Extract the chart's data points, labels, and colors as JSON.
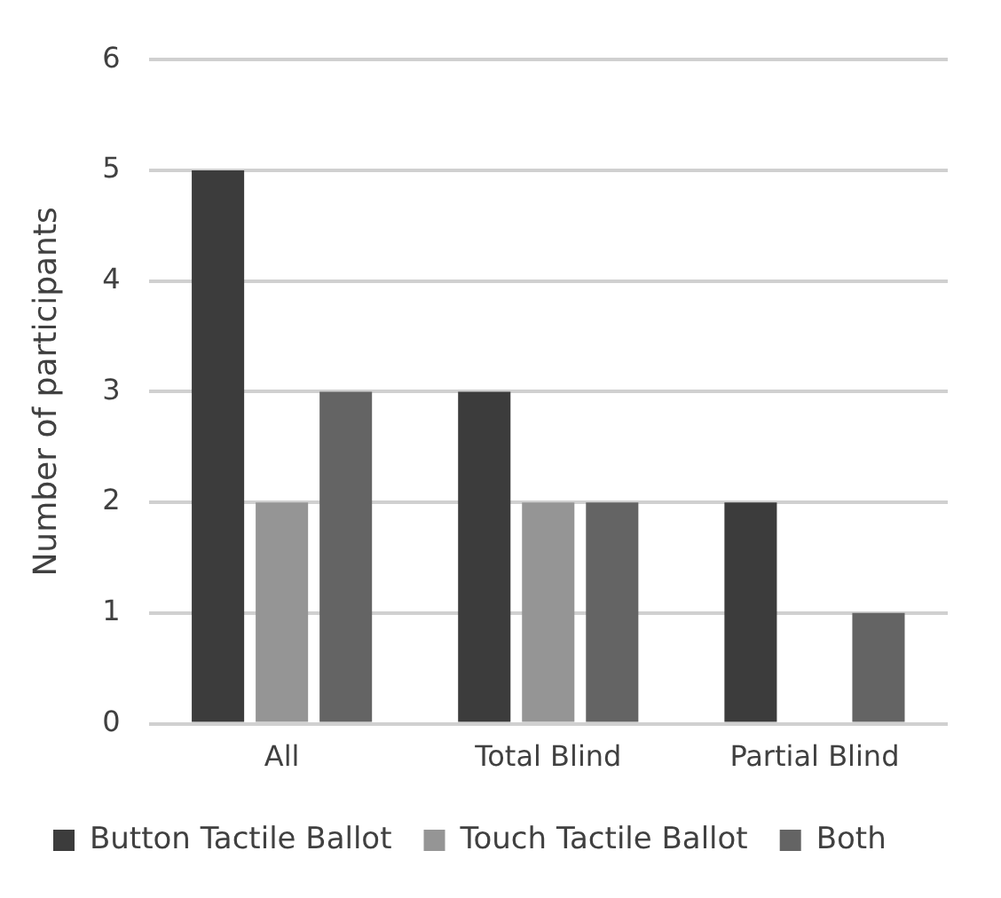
{
  "chart_data": {
    "type": "bar",
    "ylabel": "Number of participants",
    "categories": [
      "All",
      "Total Blind",
      "Partial Blind"
    ],
    "series": [
      {
        "name": "Button Tactile Ballot",
        "color": "#3c3c3c",
        "values": [
          5,
          3,
          2
        ]
      },
      {
        "name": "Touch Tactile Ballot",
        "color": "#959595",
        "values": [
          2,
          2,
          0
        ]
      },
      {
        "name": "Both",
        "color": "#646464",
        "values": [
          3,
          2,
          1
        ]
      }
    ],
    "ylim": [
      0,
      6
    ],
    "yticks": [
      0,
      1,
      2,
      3,
      4,
      5,
      6
    ],
    "grid": "y",
    "legend": "bottom"
  }
}
